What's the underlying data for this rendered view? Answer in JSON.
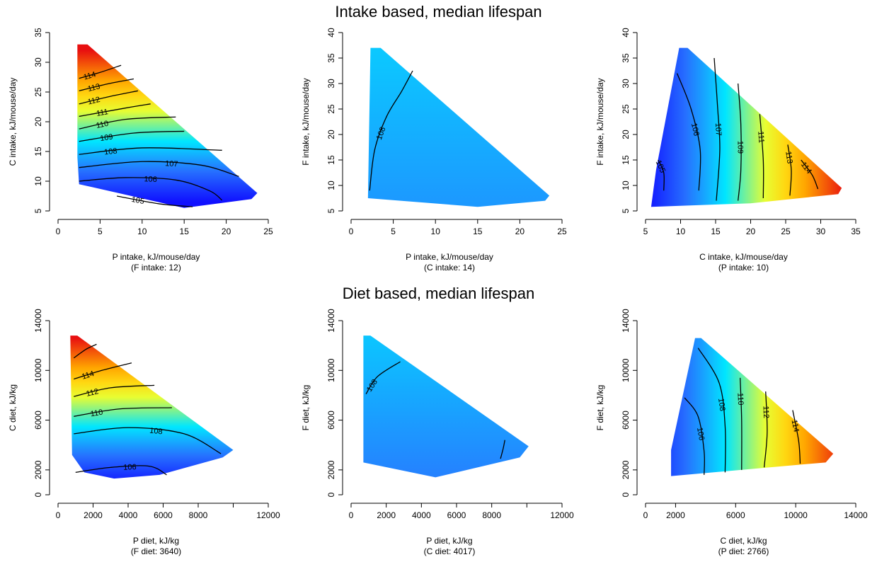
{
  "figure": {
    "top_title": "Intake based, median lifespan",
    "bottom_title": "Diet based, median lifespan"
  },
  "colors": {
    "low": "#1010ff",
    "mid_cyan": "#00ffff",
    "mid_yellow": "#ffff00",
    "high": "#e81010"
  },
  "chart_data": [
    {
      "type": "heatmap",
      "xlabel": "P intake, kJ/mouse/day",
      "xsublabel": "(F intake: 12)",
      "ylabel": "C intake, kJ/mouse/day",
      "xlim": [
        0,
        25
      ],
      "ylim": [
        5,
        35
      ],
      "xticks": [
        "0",
        "5",
        "10",
        "15",
        "20",
        "25"
      ],
      "yticks": [
        "5",
        "10",
        "15",
        "20",
        "25",
        "30",
        "35"
      ],
      "region": [
        [
          2.3,
          33
        ],
        [
          3.5,
          33
        ],
        [
          23.7,
          8
        ],
        [
          23,
          7
        ],
        [
          15,
          5.5
        ],
        [
          2.5,
          9.5
        ],
        [
          2.3,
          14
        ]
      ],
      "value_range": [
        104,
        116
      ],
      "contours": [
        {
          "label": "105",
          "points": [
            [
              7,
              7.5
            ],
            [
              12,
              6.2
            ],
            [
              16,
              5.7
            ]
          ]
        },
        {
          "label": "106",
          "points": [
            [
              2.5,
              10
            ],
            [
              8,
              10.6
            ],
            [
              14,
              10.2
            ],
            [
              18,
              8.4
            ],
            [
              19.5,
              6.8
            ]
          ]
        },
        {
          "label": "107",
          "points": [
            [
              2.5,
              12.3
            ],
            [
              10,
              13.3
            ],
            [
              17,
              12.7
            ],
            [
              21.5,
              10.8
            ]
          ]
        },
        {
          "label": "108",
          "points": [
            [
              2.5,
              14.5
            ],
            [
              10,
              15.6
            ],
            [
              19.5,
              15.2
            ]
          ]
        },
        {
          "label": "109",
          "points": [
            [
              2.5,
              16.7
            ],
            [
              9,
              18.1
            ],
            [
              15,
              18.4
            ]
          ]
        },
        {
          "label": "110",
          "points": [
            [
              2.5,
              18.8
            ],
            [
              8,
              20.4
            ],
            [
              14,
              20.8
            ]
          ]
        },
        {
          "label": "111",
          "points": [
            [
              2.5,
              20.9
            ],
            [
              8,
              22.3
            ],
            [
              11,
              23
            ]
          ]
        },
        {
          "label": "112",
          "points": [
            [
              2.5,
              23
            ],
            [
              6,
              24.2
            ],
            [
              9.5,
              25.2
            ]
          ]
        },
        {
          "label": "113",
          "points": [
            [
              2.5,
              25.2
            ],
            [
              6,
              26.4
            ],
            [
              9,
              27.2
            ]
          ]
        },
        {
          "label": "114",
          "points": [
            [
              2.5,
              27.3
            ],
            [
              5,
              28.3
            ],
            [
              7.5,
              29.5
            ]
          ]
        }
      ]
    },
    {
      "type": "heatmap",
      "xlabel": "P intake, kJ/mouse/day",
      "xsublabel": "(C intake: 14)",
      "ylabel": "F intake, kJ/mouse/day",
      "xlim": [
        0,
        25
      ],
      "ylim": [
        5,
        40
      ],
      "xticks": [
        "0",
        "5",
        "10",
        "15",
        "20",
        "25"
      ],
      "yticks": [
        "5",
        "10",
        "15",
        "20",
        "25",
        "30",
        "35",
        "40"
      ],
      "region": [
        [
          2.3,
          37
        ],
        [
          3.5,
          37
        ],
        [
          23.5,
          8
        ],
        [
          23,
          7
        ],
        [
          15,
          5.8
        ],
        [
          2,
          7.5
        ]
      ],
      "value_range": [
        104,
        116
      ],
      "contours": [
        {
          "label": "108",
          "points": [
            [
              2.2,
              9
            ],
            [
              2.8,
              17
            ],
            [
              4.2,
              23.5
            ],
            [
              6,
              28.5
            ],
            [
              7.3,
              32.5
            ]
          ]
        }
      ]
    },
    {
      "type": "heatmap",
      "xlabel": "C intake, kJ/mouse/day",
      "xsublabel": "(P intake: 10)",
      "ylabel": "F intake, kJ/mouse/day",
      "xlim": [
        5,
        35
      ],
      "ylim": [
        5,
        40
      ],
      "xticks": [
        "5",
        "10",
        "15",
        "20",
        "25",
        "30",
        "35"
      ],
      "yticks": [
        "5",
        "10",
        "15",
        "20",
        "25",
        "30",
        "35",
        "40"
      ],
      "region": [
        [
          9.8,
          37
        ],
        [
          11,
          37
        ],
        [
          33,
          9.5
        ],
        [
          32.5,
          8.3
        ],
        [
          20,
          6.5
        ],
        [
          5.8,
          5.8
        ],
        [
          6.5,
          13
        ]
      ],
      "value_range": [
        104,
        116
      ],
      "contours": [
        {
          "label": "105",
          "points": [
            [
              6.8,
              15
            ],
            [
              7.6,
              12.5
            ],
            [
              7.6,
              9
            ]
          ]
        },
        {
          "label": "106",
          "points": [
            [
              9.5,
              32
            ],
            [
              11.5,
              25
            ],
            [
              12.8,
              17
            ],
            [
              12.6,
              9
            ]
          ]
        },
        {
          "label": "107",
          "points": [
            [
              14.8,
              35
            ],
            [
              15.3,
              25
            ],
            [
              15.6,
              17
            ],
            [
              15.1,
              7
            ]
          ]
        },
        {
          "label": "109",
          "points": [
            [
              18.2,
              30
            ],
            [
              18.6,
              22
            ],
            [
              18.6,
              13
            ],
            [
              18.2,
              7
            ]
          ]
        },
        {
          "label": "111",
          "points": [
            [
              21.3,
              24
            ],
            [
              21.8,
              15
            ],
            [
              21.8,
              7.5
            ]
          ]
        },
        {
          "label": "113",
          "points": [
            [
              25.3,
              18
            ],
            [
              25.8,
              13
            ],
            [
              25.6,
              8
            ]
          ]
        },
        {
          "label": "114",
          "points": [
            [
              27.2,
              15
            ],
            [
              28.8,
              12
            ],
            [
              29.6,
              9.3
            ]
          ]
        }
      ]
    },
    {
      "type": "heatmap",
      "xlabel": "P diet, kJ/kg",
      "xsublabel": "(F diet: 3640)",
      "ylabel": "C diet, kJ/kg",
      "xlim": [
        0,
        12000
      ],
      "ylim": [
        0,
        14000
      ],
      "xticks": [
        "0",
        "2000",
        "4000",
        "6000",
        "8000",
        "",
        "12000"
      ],
      "xtick_values": [
        0,
        2000,
        4000,
        6000,
        8000,
        10000,
        12000
      ],
      "yticks": [
        "0",
        "2000",
        "6000",
        "10000",
        "14000"
      ],
      "ytick_values": [
        0,
        2000,
        6000,
        10000,
        14000
      ],
      "region": [
        [
          700,
          12800
        ],
        [
          1100,
          12800
        ],
        [
          10000,
          3600
        ],
        [
          9400,
          3000
        ],
        [
          5800,
          1600
        ],
        [
          3200,
          1300
        ],
        [
          1500,
          1800
        ],
        [
          800,
          3200
        ]
      ],
      "value_range": [
        104,
        116
      ],
      "contours": [
        {
          "label": "106",
          "points": [
            [
              1000,
              1800
            ],
            [
              3000,
              2200
            ],
            [
              5200,
              2300
            ],
            [
              6200,
              1600
            ]
          ]
        },
        {
          "label": "108",
          "points": [
            [
              900,
              4900
            ],
            [
              4000,
              5400
            ],
            [
              7200,
              4900
            ],
            [
              9300,
              3300
            ]
          ]
        },
        {
          "label": "110",
          "points": [
            [
              900,
              6300
            ],
            [
              3500,
              6900
            ],
            [
              6500,
              7000
            ]
          ]
        },
        {
          "label": "112",
          "points": [
            [
              900,
              7900
            ],
            [
              3000,
              8600
            ],
            [
              5500,
              8800
            ]
          ]
        },
        {
          "label": "114",
          "points": [
            [
              900,
              9300
            ],
            [
              2500,
              10000
            ],
            [
              4200,
              10600
            ]
          ]
        },
        {
          "label": "",
          "points": [
            [
              900,
              11000
            ],
            [
              1600,
              11700
            ],
            [
              2200,
              12100
            ]
          ]
        }
      ]
    },
    {
      "type": "heatmap",
      "xlabel": "P diet, kJ/kg",
      "xsublabel": "(C diet: 4017)",
      "ylabel": "F diet, kJ/kg",
      "xlim": [
        0,
        12000
      ],
      "ylim": [
        0,
        14000
      ],
      "xticks": [
        "0",
        "2000",
        "4000",
        "6000",
        "8000",
        "",
        "12000"
      ],
      "xtick_values": [
        0,
        2000,
        4000,
        6000,
        8000,
        10000,
        12000
      ],
      "yticks": [
        "0",
        "2000",
        "6000",
        "10000",
        "14000"
      ],
      "ytick_values": [
        0,
        2000,
        6000,
        10000,
        14000
      ],
      "region": [
        [
          700,
          12800
        ],
        [
          1100,
          12800
        ],
        [
          10100,
          3900
        ],
        [
          9600,
          3000
        ],
        [
          4800,
          1400
        ],
        [
          700,
          2600
        ]
      ],
      "value_range": [
        104,
        116
      ],
      "contours": [
        {
          "label": "108",
          "points": [
            [
              850,
              8100
            ],
            [
              1500,
              9500
            ],
            [
              2800,
              10700
            ]
          ]
        },
        {
          "label": "",
          "points": [
            [
              8500,
              2900
            ],
            [
              8650,
              3700
            ],
            [
              8750,
              4400
            ]
          ]
        }
      ]
    },
    {
      "type": "heatmap",
      "xlabel": "C diet, kJ/kg",
      "xsublabel": "(P diet: 2766)",
      "ylabel": "F diet, kJ/kg",
      "xlim": [
        0,
        14000
      ],
      "ylim": [
        0,
        14000
      ],
      "xticks": [
        "0",
        "2000",
        "6000",
        "10000",
        "14000"
      ],
      "xtick_values": [
        0,
        2000,
        6000,
        10000,
        14000
      ],
      "yticks": [
        "0",
        "2000",
        "6000",
        "10000",
        "14000"
      ],
      "ytick_values": [
        0,
        2000,
        6000,
        10000,
        14000
      ],
      "region": [
        [
          3300,
          12600
        ],
        [
          3700,
          12600
        ],
        [
          12500,
          3300
        ],
        [
          12000,
          2600
        ],
        [
          1700,
          1500
        ],
        [
          1700,
          3600
        ]
      ],
      "value_range": [
        104,
        116
      ],
      "contours": [
        {
          "label": "106",
          "points": [
            [
              2600,
              7800
            ],
            [
              3500,
              6300
            ],
            [
              3900,
              3500
            ],
            [
              3900,
              1600
            ]
          ]
        },
        {
          "label": "108",
          "points": [
            [
              3500,
              11800
            ],
            [
              4900,
              9000
            ],
            [
              5300,
              5500
            ],
            [
              5300,
              1800
            ]
          ]
        },
        {
          "label": "110",
          "points": [
            [
              6300,
              9400
            ],
            [
              6400,
              6000
            ],
            [
              6400,
              2000
            ]
          ]
        },
        {
          "label": "112",
          "points": [
            [
              8000,
              8300
            ],
            [
              8100,
              5000
            ],
            [
              7900,
              2200
            ]
          ]
        },
        {
          "label": "114",
          "points": [
            [
              9800,
              6800
            ],
            [
              10200,
              4300
            ],
            [
              10300,
              2500
            ]
          ]
        }
      ]
    }
  ]
}
